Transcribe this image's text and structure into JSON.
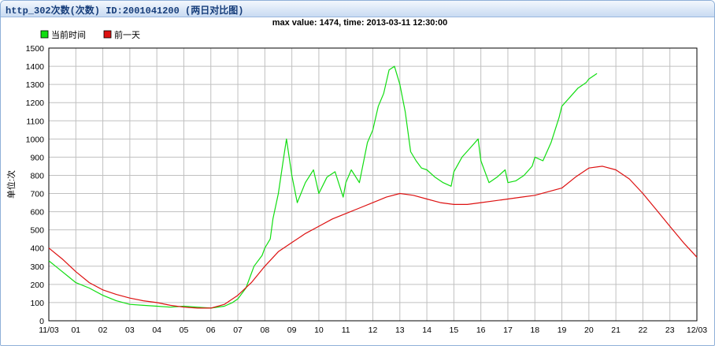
{
  "panel": {
    "title": "http_302次数(次数) ID:2001041200 (两日对比图)"
  },
  "chart_data": {
    "type": "line",
    "title": "max value: 1474, time: 2013-03-11 12:30:00",
    "xlabel": "",
    "ylabel": "单位:次",
    "ylim": [
      0,
      1500
    ],
    "yticks": [
      0,
      100,
      200,
      300,
      400,
      500,
      600,
      700,
      800,
      900,
      1000,
      1100,
      1200,
      1300,
      1400,
      1500
    ],
    "xlim": [
      0,
      24
    ],
    "xtick_labels": [
      "11/03",
      "01",
      "02",
      "03",
      "04",
      "05",
      "06",
      "07",
      "08",
      "09",
      "10",
      "11",
      "12",
      "13",
      "14",
      "15",
      "16",
      "17",
      "18",
      "19",
      "20",
      "21",
      "22",
      "23",
      "12/03"
    ],
    "grid": true,
    "legend": "top-left",
    "series": [
      {
        "name": "当前时间",
        "color": "#11dd11",
        "x": [
          0,
          0.25,
          0.5,
          0.75,
          1,
          1.5,
          2,
          2.5,
          3,
          3.5,
          4,
          4.5,
          5,
          5.5,
          6,
          6.5,
          6.8,
          7,
          7.3,
          7.6,
          7.9,
          8,
          8.2,
          8.3,
          8.5,
          8.7,
          8.8,
          9,
          9.2,
          9.5,
          9.8,
          10,
          10.3,
          10.6,
          10.9,
          11,
          11.2,
          11.5,
          11.8,
          12,
          12.2,
          12.4,
          12.6,
          12.8,
          13,
          13.2,
          13.4,
          13.6,
          13.8,
          14,
          14.3,
          14.6,
          14.9,
          15,
          15.3,
          15.6,
          15.9,
          16,
          16.3,
          16.6,
          16.9,
          17,
          17.3,
          17.6,
          17.9,
          18,
          18.3,
          18.6,
          18.9,
          19,
          19.3,
          19.6,
          19.9,
          20,
          20.3
        ],
        "y": [
          330,
          300,
          270,
          240,
          210,
          180,
          140,
          110,
          90,
          85,
          80,
          75,
          80,
          75,
          70,
          80,
          100,
          120,
          180,
          300,
          360,
          400,
          450,
          560,
          700,
          900,
          1000,
          800,
          650,
          760,
          830,
          700,
          790,
          820,
          680,
          760,
          830,
          760,
          980,
          1050,
          1180,
          1250,
          1380,
          1400,
          1300,
          1150,
          930,
          880,
          840,
          830,
          790,
          760,
          740,
          820,
          900,
          950,
          1000,
          880,
          760,
          790,
          830,
          760,
          770,
          800,
          850,
          900,
          880,
          980,
          1120,
          1180,
          1230,
          1280,
          1310,
          1330,
          1360
        ]
      },
      {
        "name": "前一天",
        "color": "#dd1111",
        "x": [
          0,
          0.5,
          1,
          1.5,
          2,
          2.5,
          3,
          3.5,
          4,
          4.5,
          5,
          5.5,
          6,
          6.5,
          7,
          7.5,
          8,
          8.5,
          9,
          9.5,
          10,
          10.5,
          11,
          11.5,
          12,
          12.5,
          13,
          13.5,
          14,
          14.5,
          15,
          15.5,
          16,
          16.5,
          17,
          17.5,
          18,
          18.5,
          19,
          19.5,
          20,
          20.5,
          21,
          21.5,
          22,
          22.5,
          23,
          23.5,
          24
        ],
        "y": [
          400,
          340,
          270,
          210,
          170,
          145,
          125,
          110,
          100,
          85,
          75,
          70,
          70,
          90,
          140,
          210,
          300,
          380,
          430,
          480,
          520,
          560,
          590,
          620,
          650,
          680,
          700,
          690,
          670,
          650,
          640,
          640,
          650,
          660,
          670,
          680,
          690,
          710,
          730,
          790,
          840,
          850,
          830,
          780,
          700,
          610,
          520,
          430,
          350
        ]
      }
    ]
  }
}
